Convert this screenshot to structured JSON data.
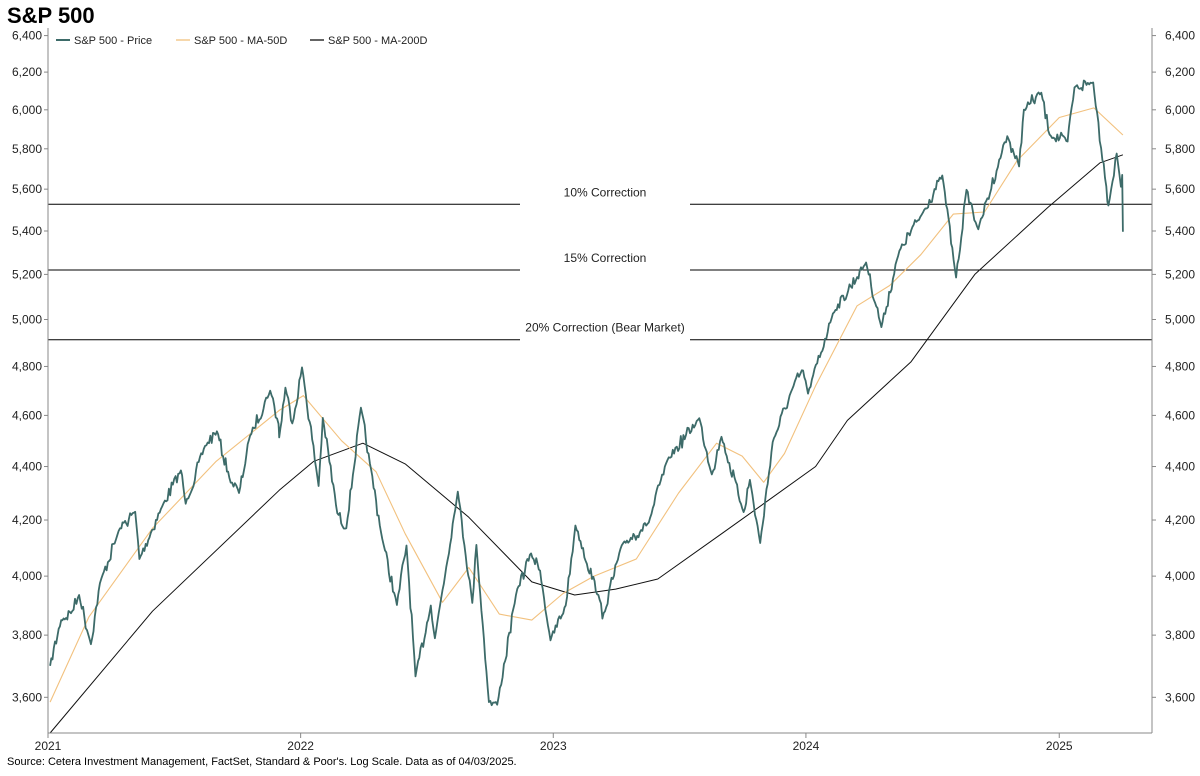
{
  "colors": {
    "price": "#3d6b69",
    "ma50": "#f2c17e",
    "ma200": "#111111",
    "correction": "#000000",
    "axis": "#888888"
  },
  "chart_data": {
    "type": "line",
    "title": "S&P 500",
    "source": "Source: Cetera Investment Management, FactSet, Standard & Poor's. Log Scale. Data as of 04/03/2025.",
    "log_scale": true,
    "grid": false,
    "legend_position": "top-left",
    "ylim": [
      3490,
      6420
    ],
    "yticks": [
      3600,
      3800,
      4000,
      4200,
      4400,
      4600,
      4800,
      5000,
      5200,
      5400,
      5600,
      5800,
      6000,
      6200,
      6400
    ],
    "ytick_labels": [
      "3,600",
      "3,800",
      "4,000",
      "4,200",
      "4,400",
      "4,600",
      "4,800",
      "5,000",
      "5,200",
      "5,400",
      "5,600",
      "5,800",
      "6,000",
      "6,200",
      "6,400"
    ],
    "xlim": [
      "2021-01-01",
      "2025-05-15"
    ],
    "xticks": [
      "2021-01-01",
      "2022-01-01",
      "2023-01-01",
      "2024-01-01",
      "2025-01-01"
    ],
    "xtick_labels": [
      "2021",
      "2022",
      "2023",
      "2024",
      "2025"
    ],
    "reference_lines": [
      {
        "label": "10% Correction",
        "value": 5527
      },
      {
        "label": "15% Correction",
        "value": 5220
      },
      {
        "label": "20% Correction (Bear Market)",
        "value": 4913
      }
    ],
    "series": [
      {
        "name": "S&P 500 - Price",
        "points": [
          [
            "2021-01-04",
            3700
          ],
          [
            "2021-01-20",
            3850
          ],
          [
            "2021-02-05",
            3880
          ],
          [
            "2021-02-15",
            3935
          ],
          [
            "2021-03-04",
            3770
          ],
          [
            "2021-03-17",
            3975
          ],
          [
            "2021-04-15",
            4170
          ],
          [
            "2021-05-07",
            4230
          ],
          [
            "2021-05-13",
            4060
          ],
          [
            "2021-06-15",
            4250
          ],
          [
            "2021-07-12",
            4385
          ],
          [
            "2021-07-19",
            4260
          ],
          [
            "2021-08-16",
            4480
          ],
          [
            "2021-09-02",
            4537
          ],
          [
            "2021-09-20",
            4358
          ],
          [
            "2021-10-04",
            4300
          ],
          [
            "2021-10-20",
            4520
          ],
          [
            "2021-11-18",
            4700
          ],
          [
            "2021-11-30",
            4567
          ],
          [
            "2021-12-01",
            4513
          ],
          [
            "2021-12-10",
            4712
          ],
          [
            "2021-12-20",
            4568
          ],
          [
            "2022-01-03",
            4796
          ],
          [
            "2022-01-27",
            4326
          ],
          [
            "2022-02-02",
            4590
          ],
          [
            "2022-02-23",
            4225
          ],
          [
            "2022-03-08",
            4170
          ],
          [
            "2022-03-29",
            4631
          ],
          [
            "2022-04-11",
            4412
          ],
          [
            "2022-04-29",
            4131
          ],
          [
            "2022-05-20",
            3901
          ],
          [
            "2022-06-03",
            4108
          ],
          [
            "2022-06-16",
            3666
          ],
          [
            "2022-07-08",
            3899
          ],
          [
            "2022-07-14",
            3790
          ],
          [
            "2022-08-16",
            4305
          ],
          [
            "2022-09-06",
            3908
          ],
          [
            "2022-09-12",
            4110
          ],
          [
            "2022-09-30",
            3585
          ],
          [
            "2022-10-12",
            3577
          ],
          [
            "2022-11-10",
            3956
          ],
          [
            "2022-11-30",
            4080
          ],
          [
            "2022-12-13",
            4019
          ],
          [
            "2022-12-28",
            3783
          ],
          [
            "2023-01-19",
            3899
          ],
          [
            "2023-02-02",
            4180
          ],
          [
            "2023-03-09",
            3918
          ],
          [
            "2023-03-13",
            3855
          ],
          [
            "2023-04-10",
            4109
          ],
          [
            "2023-05-19",
            4191
          ],
          [
            "2023-06-15",
            4425
          ],
          [
            "2023-07-31",
            4589
          ],
          [
            "2023-08-18",
            4370
          ],
          [
            "2023-09-01",
            4515
          ],
          [
            "2023-10-03",
            4229
          ],
          [
            "2023-10-12",
            4349
          ],
          [
            "2023-10-27",
            4117
          ],
          [
            "2023-11-14",
            4495
          ],
          [
            "2023-12-14",
            4719
          ],
          [
            "2023-12-28",
            4783
          ],
          [
            "2024-01-04",
            4688
          ],
          [
            "2024-02-09",
            5026
          ],
          [
            "2024-03-28",
            5254
          ],
          [
            "2024-04-19",
            4967
          ],
          [
            "2024-05-15",
            5308
          ],
          [
            "2024-06-18",
            5487
          ],
          [
            "2024-07-16",
            5667
          ],
          [
            "2024-08-05",
            5186
          ],
          [
            "2024-08-20",
            5597
          ],
          [
            "2024-09-06",
            5408
          ],
          [
            "2024-10-10",
            5780
          ],
          [
            "2024-10-18",
            5864
          ],
          [
            "2024-11-04",
            5712
          ],
          [
            "2024-11-11",
            6001
          ],
          [
            "2024-12-06",
            6090
          ],
          [
            "2024-12-18",
            5872
          ],
          [
            "2025-01-13",
            5837
          ],
          [
            "2025-01-23",
            6118
          ],
          [
            "2025-02-19",
            6144
          ],
          [
            "2025-03-10",
            5614
          ],
          [
            "2025-03-13",
            5521
          ],
          [
            "2025-03-25",
            5776
          ],
          [
            "2025-03-31",
            5612
          ],
          [
            "2025-04-02",
            5670
          ],
          [
            "2025-04-03",
            5396
          ]
        ]
      },
      {
        "name": "S&P 500 - MA-50D",
        "points": [
          [
            "2021-01-04",
            3585
          ],
          [
            "2021-03-01",
            3860
          ],
          [
            "2021-06-01",
            4170
          ],
          [
            "2021-09-01",
            4420
          ],
          [
            "2021-12-01",
            4620
          ],
          [
            "2022-01-05",
            4680
          ],
          [
            "2022-03-01",
            4500
          ],
          [
            "2022-04-20",
            4380
          ],
          [
            "2022-06-01",
            4150
          ],
          [
            "2022-07-25",
            3910
          ],
          [
            "2022-09-01",
            4030
          ],
          [
            "2022-10-15",
            3870
          ],
          [
            "2022-12-01",
            3850
          ],
          [
            "2023-01-15",
            3940
          ],
          [
            "2023-03-01",
            4000
          ],
          [
            "2023-05-01",
            4060
          ],
          [
            "2023-07-01",
            4300
          ],
          [
            "2023-08-25",
            4490
          ],
          [
            "2023-10-01",
            4440
          ],
          [
            "2023-11-01",
            4340
          ],
          [
            "2023-12-01",
            4450
          ],
          [
            "2024-01-15",
            4720
          ],
          [
            "2024-03-15",
            5060
          ],
          [
            "2024-05-01",
            5150
          ],
          [
            "2024-06-15",
            5290
          ],
          [
            "2024-08-01",
            5480
          ],
          [
            "2024-09-15",
            5490
          ],
          [
            "2024-11-01",
            5740
          ],
          [
            "2025-01-01",
            5960
          ],
          [
            "2025-02-20",
            6010
          ],
          [
            "2025-04-03",
            5870
          ]
        ]
      },
      {
        "name": "S&P 500 - MA-200D",
        "points": [
          [
            "2021-01-04",
            3490
          ],
          [
            "2021-06-01",
            3880
          ],
          [
            "2021-12-01",
            4310
          ],
          [
            "2022-01-20",
            4420
          ],
          [
            "2022-04-01",
            4490
          ],
          [
            "2022-06-01",
            4410
          ],
          [
            "2022-09-01",
            4210
          ],
          [
            "2022-12-01",
            3980
          ],
          [
            "2023-02-01",
            3935
          ],
          [
            "2023-04-01",
            3955
          ],
          [
            "2023-06-01",
            3990
          ],
          [
            "2023-09-01",
            4150
          ],
          [
            "2023-11-01",
            4260
          ],
          [
            "2024-01-15",
            4400
          ],
          [
            "2024-03-01",
            4580
          ],
          [
            "2024-06-01",
            4820
          ],
          [
            "2024-09-01",
            5200
          ],
          [
            "2024-12-15",
            5510
          ],
          [
            "2025-03-01",
            5730
          ],
          [
            "2025-04-03",
            5770
          ]
        ]
      }
    ]
  }
}
